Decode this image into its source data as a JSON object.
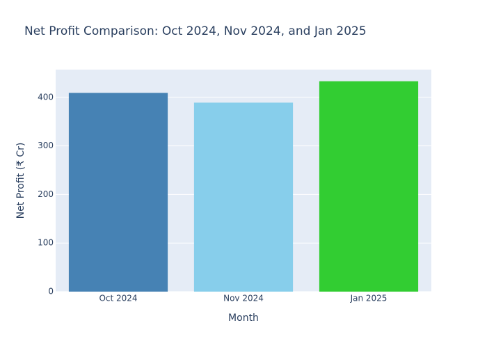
{
  "chart_data": {
    "type": "bar",
    "title": "Net Profit Comparison: Oct 2024, Nov 2024, and Jan 2025",
    "x_label": "Month",
    "y_label": "Net Profit (₹ Cr)",
    "categories": [
      "Oct 2024",
      "Nov 2024",
      "Jan 2025"
    ],
    "values": [
      409,
      389,
      433
    ],
    "colors": [
      "#4682b4",
      "#87ceeb",
      "#32cd32"
    ],
    "ylim": [
      0,
      457
    ],
    "yticks": [
      0,
      100,
      200,
      300,
      400
    ],
    "grid": true
  }
}
